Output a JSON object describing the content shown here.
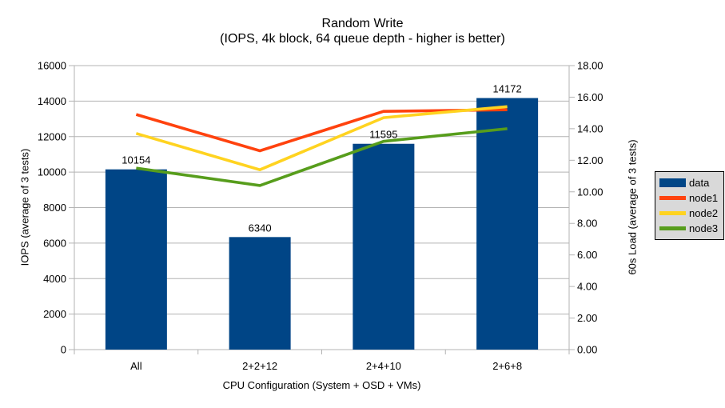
{
  "title": {
    "line1": "Random Write",
    "line2": "(IOPS, 4k block, 64 queue depth - higher is better)"
  },
  "chart_data": {
    "type": "bar+line",
    "categories": [
      "All",
      "2+2+12",
      "2+4+10",
      "2+6+8"
    ],
    "bar_series": {
      "name": "data",
      "axis": "left",
      "color": "#004586",
      "values": [
        10154,
        6340,
        11595,
        14172
      ]
    },
    "line_series": [
      {
        "name": "node1",
        "axis": "right",
        "color": "#ff420e",
        "values": [
          14.9,
          12.6,
          15.1,
          15.2
        ]
      },
      {
        "name": "node2",
        "axis": "right",
        "color": "#ffd320",
        "values": [
          13.7,
          11.4,
          14.7,
          15.4
        ]
      },
      {
        "name": "node3",
        "axis": "right",
        "color": "#579d1c",
        "values": [
          11.5,
          10.4,
          13.2,
          14.0
        ]
      }
    ],
    "x_axis": {
      "label": "CPU Configuration (System + OSD + VMs)"
    },
    "left_axis": {
      "label": "IOPS (average of 3 tests)",
      "min": 0,
      "max": 16000,
      "step": 2000,
      "tick_labels": [
        "0",
        "2000",
        "4000",
        "6000",
        "8000",
        "10000",
        "12000",
        "14000",
        "16000"
      ]
    },
    "right_axis": {
      "label": "60s Load (average of 3 tests)",
      "min": 0,
      "max": 18,
      "step": 2,
      "tick_labels": [
        "0.00",
        "2.00",
        "4.00",
        "6.00",
        "8.00",
        "10.00",
        "12.00",
        "14.00",
        "16.00",
        "18.00"
      ]
    },
    "legend": {
      "position": "right",
      "entries": [
        {
          "label": "data",
          "color": "#004586",
          "type": "bar"
        },
        {
          "label": "node1",
          "color": "#ff420e",
          "type": "line"
        },
        {
          "label": "node2",
          "color": "#ffd320",
          "type": "line"
        },
        {
          "label": "node3",
          "color": "#579d1c",
          "type": "line"
        }
      ]
    },
    "grid": true,
    "colors": {
      "grid": "#b3b3b3",
      "axis": "#b3b3b3",
      "text": "#000000",
      "legend_bg": "#d9d9d9",
      "legend_border": "#000000",
      "background": "#ffffff"
    }
  }
}
